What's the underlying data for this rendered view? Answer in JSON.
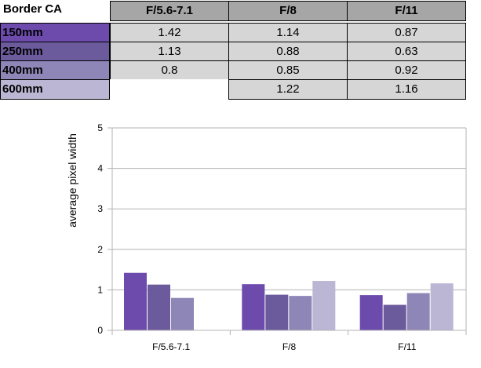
{
  "table": {
    "title": "Border CA",
    "columns": [
      "F/5.6-7.1",
      "F/8",
      "F/11"
    ],
    "rows": [
      {
        "label": "150mm",
        "values": [
          "1.42",
          "1.14",
          "0.87"
        ],
        "color": "#6d4bad"
      },
      {
        "label": "250mm",
        "values": [
          "1.13",
          "0.88",
          "0.63"
        ],
        "color": "#6b5a9c"
      },
      {
        "label": "400mm",
        "values": [
          "0.8",
          "0.85",
          "0.92"
        ],
        "color": "#8e86b6"
      },
      {
        "label": "600mm",
        "values": [
          "",
          "1.22",
          "1.16"
        ],
        "color": "#bcb6d5"
      }
    ]
  },
  "chart_data": {
    "type": "bar",
    "categories": [
      "F/5.6-7.1",
      "F/8",
      "F/11"
    ],
    "series": [
      {
        "values": [
          1.42,
          1.14,
          0.87
        ],
        "color": "#6d4bad"
      },
      {
        "values": [
          1.13,
          0.88,
          0.63
        ],
        "color": "#6b5a9c"
      },
      {
        "values": [
          0.8,
          0.85,
          0.92
        ],
        "color": "#8e86b6"
      },
      {
        "values": [
          null,
          1.22,
          1.16
        ],
        "color": "#bcb6d5"
      }
    ],
    "title": "",
    "xlabel": "",
    "ylabel": "average pixel width",
    "ylim": [
      0,
      5
    ],
    "yticks": [
      0,
      1,
      2,
      3,
      4,
      5
    ],
    "grid": true,
    "legend": "none"
  }
}
